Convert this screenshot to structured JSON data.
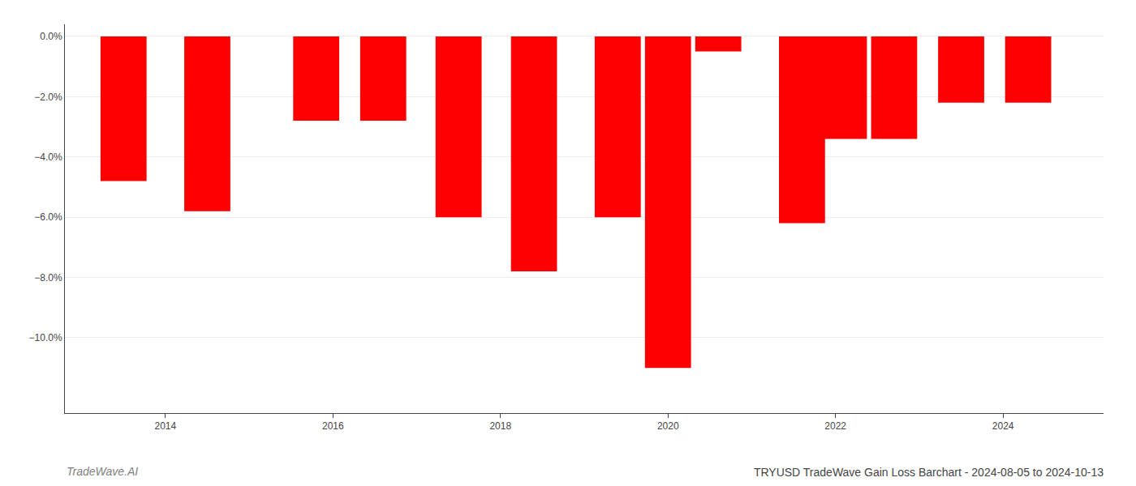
{
  "chart_data": {
    "type": "bar",
    "title": "TRYUSD TradeWave Gain Loss Barchart - 2024-08-05 to 2024-10-13",
    "annotations": [
      "TradeWave.AI"
    ],
    "x": [
      2013.5,
      2014.5,
      2015.8,
      2016.6,
      2017.5,
      2018.4,
      2019.4,
      2020.0,
      2020.6,
      2021.6,
      2022.1,
      2022.7,
      2023.5,
      2024.3
    ],
    "values": [
      -0.048,
      -0.058,
      -0.028,
      -0.028,
      -0.06,
      -0.078,
      -0.06,
      -0.11,
      -0.005,
      -0.062,
      -0.034,
      -0.034,
      -0.022,
      -0.022
    ],
    "color": "#ff0000",
    "xlim": [
      2012.8,
      2025.2
    ],
    "xticks": [
      2014,
      2016,
      2018,
      2020,
      2022,
      2024
    ],
    "ylim": [
      -0.125,
      0.004
    ],
    "yticks": [
      {
        "value": 0,
        "label": "0.0%"
      },
      {
        "value": -0.02,
        "label": "−2.0%"
      },
      {
        "value": -0.04,
        "label": "−4.0%"
      },
      {
        "value": -0.06,
        "label": "−6.0%"
      },
      {
        "value": -0.08,
        "label": "−8.0%"
      },
      {
        "value": -0.1,
        "label": "−10.0%"
      }
    ],
    "grid": true
  }
}
